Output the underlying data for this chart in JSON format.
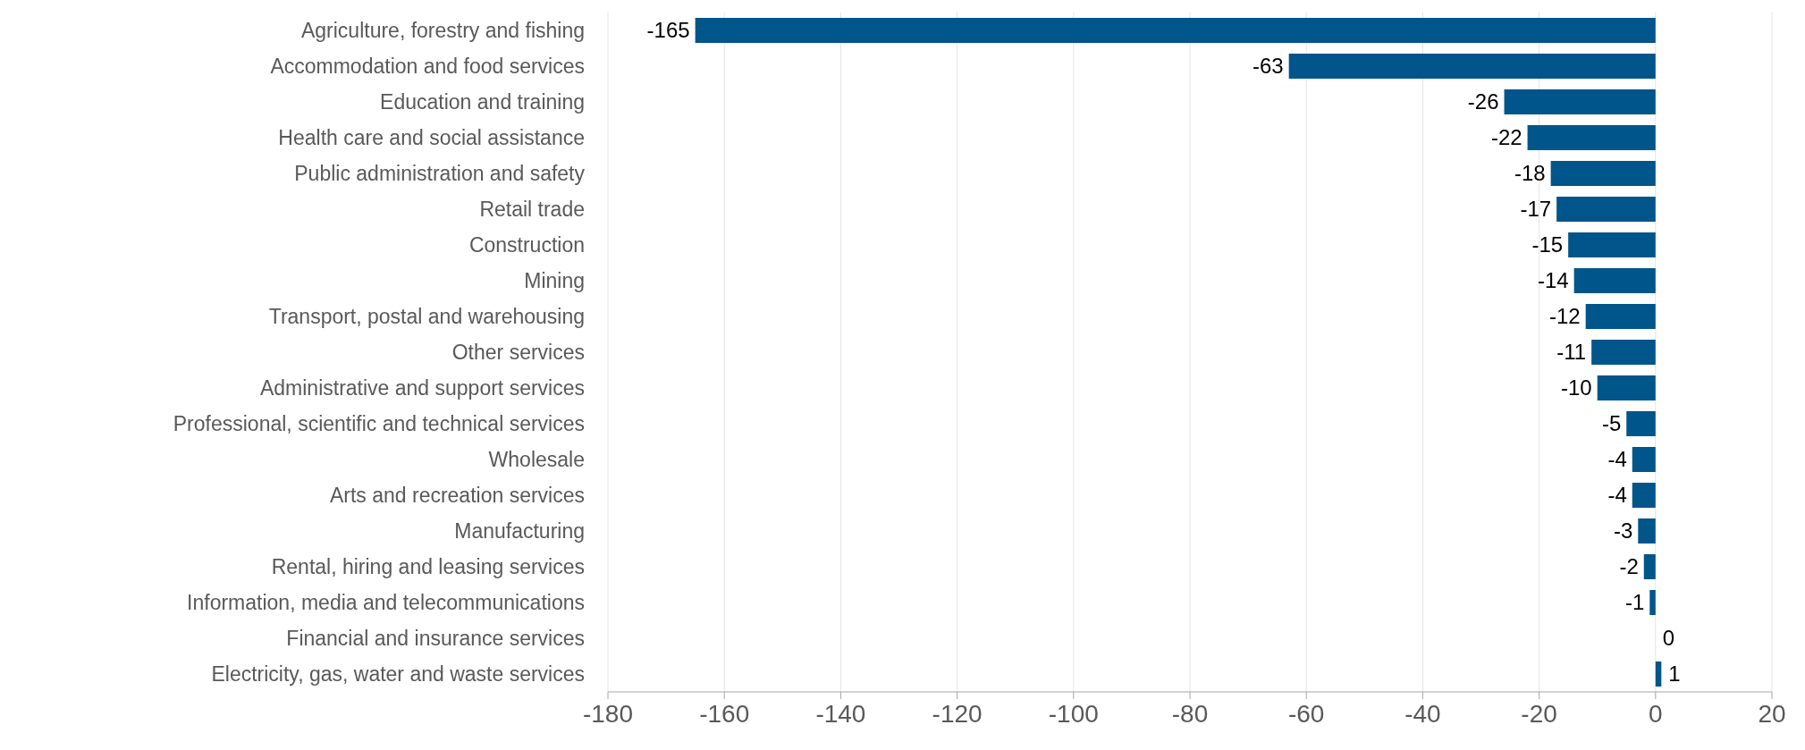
{
  "chart_data": {
    "type": "bar",
    "orientation": "horizontal",
    "categories": [
      "Agriculture, forestry and fishing",
      "Accommodation and food services",
      "Education and training",
      "Health care and social assistance",
      "Public administration and safety",
      "Retail trade",
      "Construction",
      "Mining",
      "Transport, postal and warehousing",
      "Other services",
      "Administrative and support services",
      "Professional, scientific and technical services",
      "Wholesale",
      "Arts and recreation services",
      "Manufacturing",
      "Rental, hiring and leasing services",
      "Information, media and telecommunications",
      "Financial and insurance services",
      "Electricity, gas, water and waste services"
    ],
    "values": [
      -165,
      -63,
      -26,
      -22,
      -18,
      -17,
      -15,
      -14,
      -12,
      -11,
      -10,
      -5,
      -4,
      -4,
      -3,
      -2,
      -1,
      0,
      1
    ],
    "color": "#00558b",
    "xlim": [
      -180,
      20
    ],
    "xticks": [
      -180,
      -160,
      -140,
      -120,
      -100,
      -80,
      -60,
      -40,
      -20,
      0,
      20
    ],
    "grid": "x",
    "data_labels": true,
    "legend": false
  }
}
